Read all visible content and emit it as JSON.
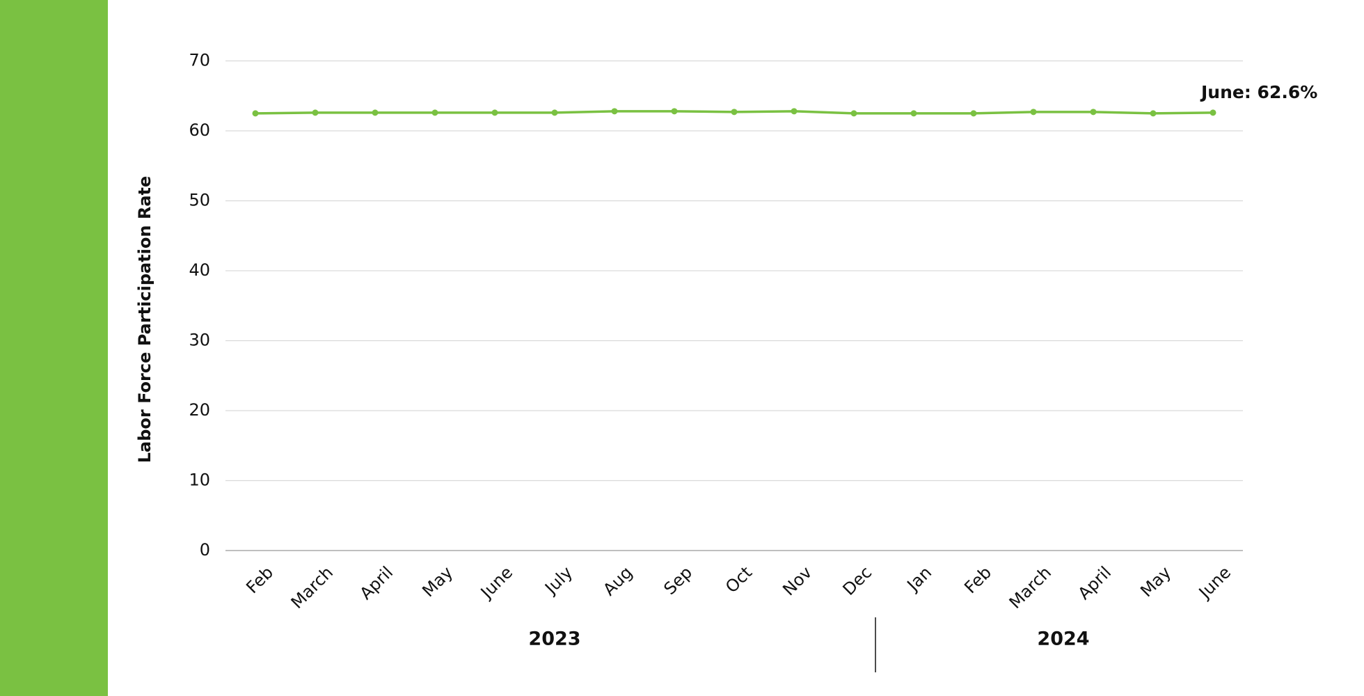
{
  "chart_data": {
    "type": "line",
    "y_label": "Labor Force Participation Rate",
    "categories": [
      "Feb",
      "March",
      "April",
      "May",
      "June",
      "July",
      "Aug",
      "Sep",
      "Oct",
      "Nov",
      "Dec",
      "Jan",
      "Feb",
      "March",
      "April",
      "May",
      "June"
    ],
    "series": [
      {
        "color": "#7ac142",
        "values": [
          62.5,
          62.6,
          62.6,
          62.6,
          62.6,
          62.6,
          62.8,
          62.8,
          62.7,
          62.8,
          62.5,
          62.5,
          62.5,
          62.7,
          62.7,
          62.5,
          62.6
        ]
      }
    ],
    "groups": [
      {
        "label": "2023",
        "count": 11
      },
      {
        "label": "2024",
        "count": 6
      }
    ],
    "annotation": "June: 62.6%",
    "ylim": [
      0,
      70
    ],
    "yticks": [
      0,
      10,
      20,
      30,
      40,
      50,
      60,
      70
    ],
    "grid": true
  }
}
